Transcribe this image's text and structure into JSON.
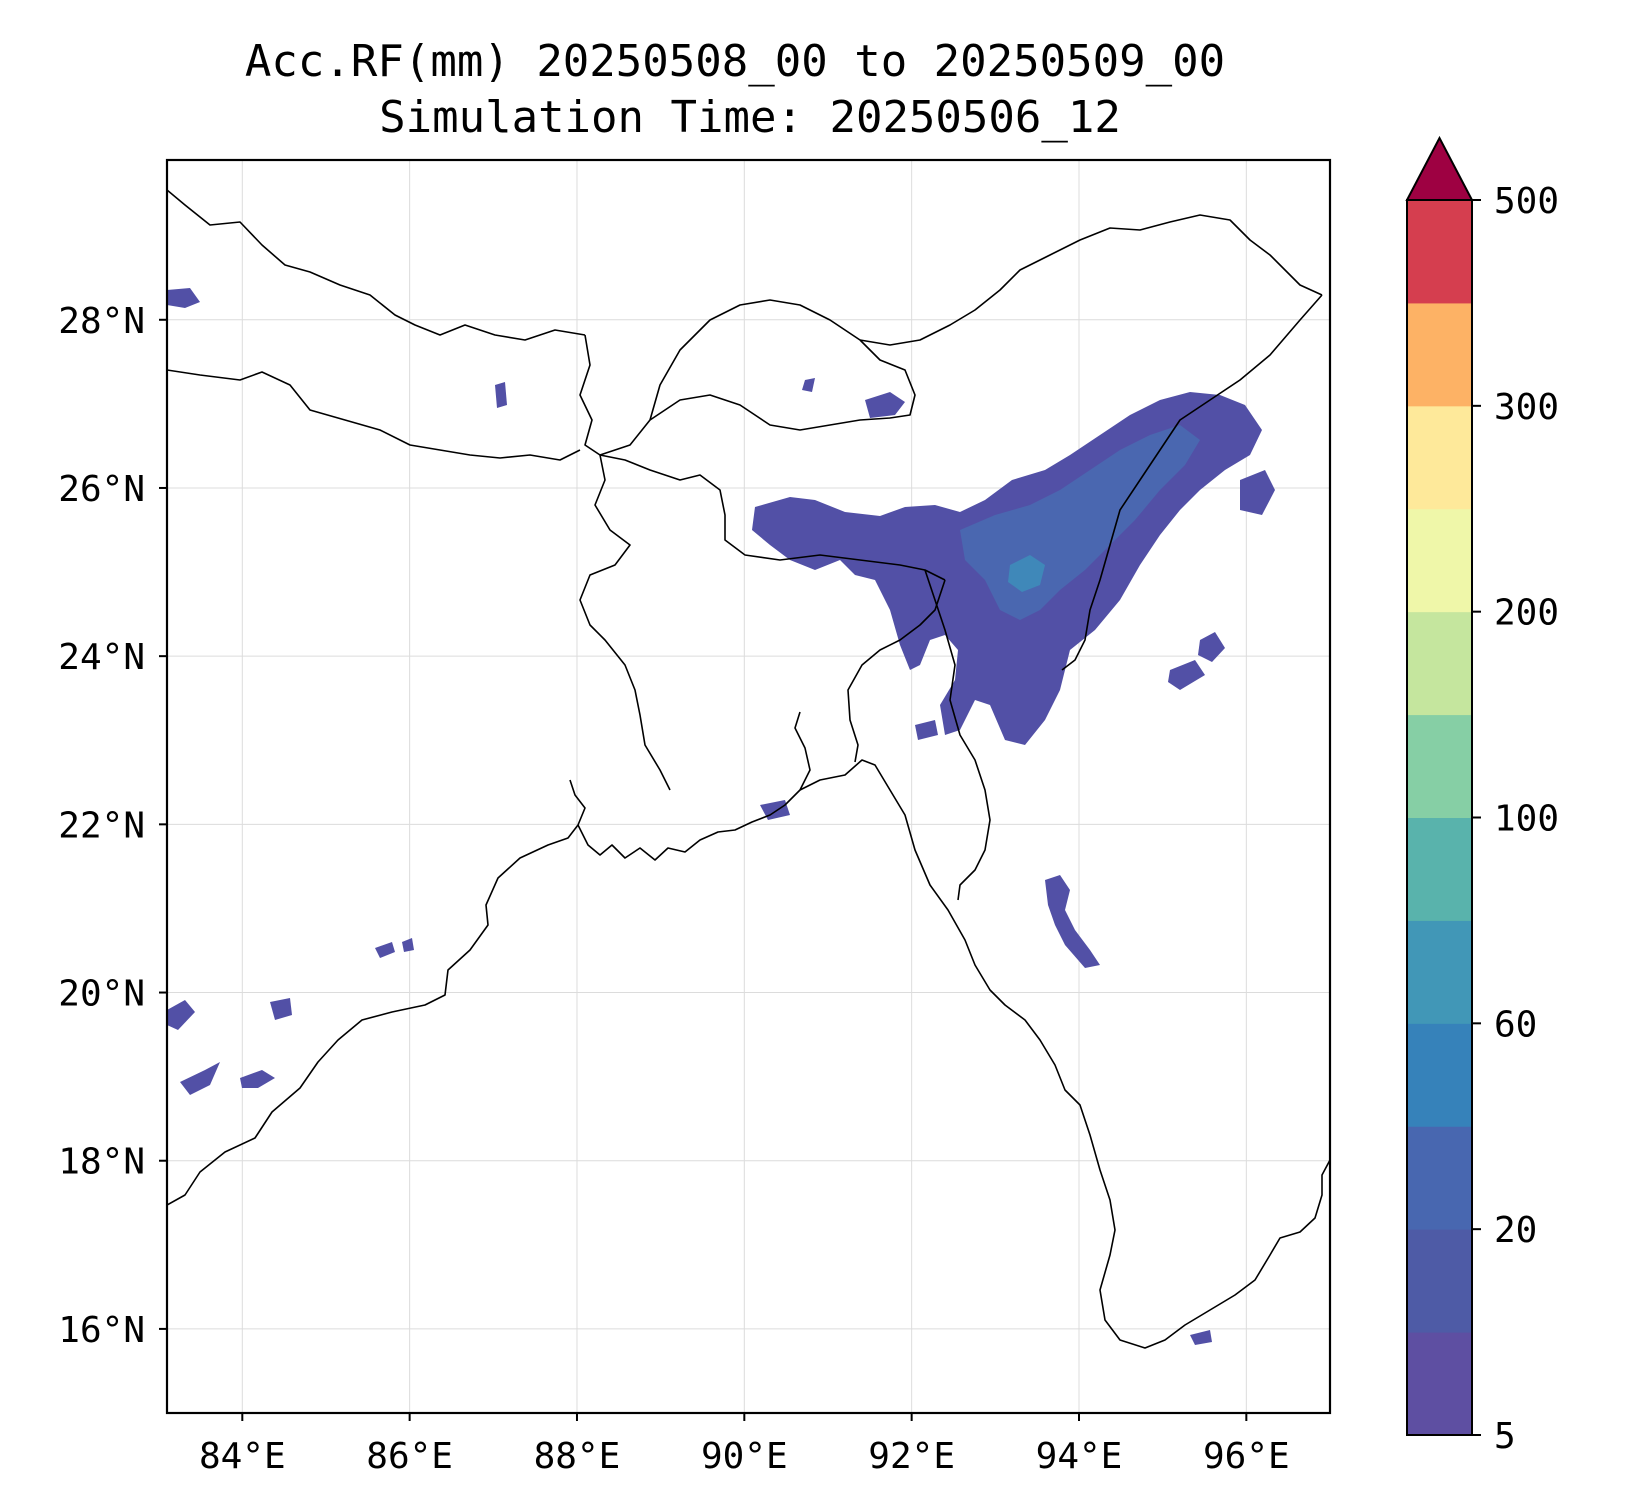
{
  "title": {
    "line1": "Acc.RF(mm) 20250508_00 to 20250509_00",
    "line2": "Simulation Time: 20250506_12"
  },
  "map": {
    "extent": {
      "lon": [
        83.1,
        97.0
      ],
      "lat": [
        15.0,
        29.9
      ]
    },
    "lon_ticks": [
      84,
      86,
      88,
      90,
      92,
      94,
      96
    ],
    "lon_tick_labels": [
      "84°E",
      "86°E",
      "88°E",
      "90°E",
      "92°E",
      "94°E",
      "96°E"
    ],
    "lat_ticks": [
      16,
      18,
      20,
      22,
      24,
      26,
      28
    ],
    "lat_tick_labels": [
      "16°N",
      "18°N",
      "20°N",
      "22°N",
      "24°N",
      "26°N",
      "28°N"
    ],
    "grid": true
  },
  "colorbar": {
    "extend": "max",
    "tick_labels": [
      "5",
      "20",
      "60",
      "100",
      "200",
      "300",
      "500"
    ],
    "colors": [
      "#5e4fa2",
      "#4e5ba6",
      "#4867b0",
      "#3682ba",
      "#4197b7",
      "#59b3ac",
      "#86cfa5",
      "#c5e69e",
      "#eff7a9",
      "#fee99a",
      "#fdb265",
      "#d53e4f",
      "#9e0142"
    ]
  }
}
